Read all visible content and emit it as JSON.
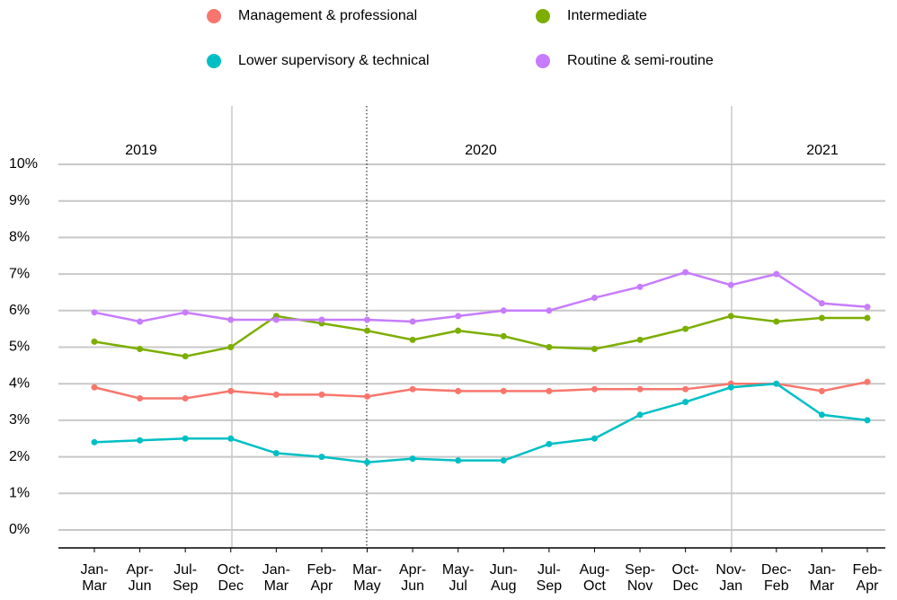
{
  "chart_data": {
    "type": "line",
    "categories": [
      "Jan-Mar",
      "Apr-Jun",
      "Jul-Sep",
      "Oct-Dec",
      "Jan-Mar",
      "Feb-Apr",
      "Mar-May",
      "Apr-Jun",
      "May-Jul",
      "Jun-Aug",
      "Jul-Sep",
      "Aug-Oct",
      "Sep-Nov",
      "Oct-Dec",
      "Nov-Jan",
      "Dec-Feb",
      "Jan-Mar",
      "Feb-Apr"
    ],
    "annotations": [
      "2019",
      "2020",
      "2021"
    ],
    "series": [
      {
        "name": "Management & professional",
        "color": "#f8766d",
        "values": [
          3.9,
          3.6,
          3.6,
          3.8,
          3.7,
          3.7,
          3.65,
          3.85,
          3.8,
          3.8,
          3.8,
          3.85,
          3.85,
          3.85,
          4.0,
          4.0,
          3.8,
          4.05
        ]
      },
      {
        "name": "Intermediate",
        "color": "#7cae00",
        "values": [
          5.15,
          4.95,
          4.75,
          5.0,
          5.85,
          5.65,
          5.45,
          5.2,
          5.45,
          5.3,
          5.0,
          4.95,
          5.2,
          5.5,
          5.85,
          5.7,
          5.8,
          5.8
        ]
      },
      {
        "name": "Lower supervisory & technical",
        "color": "#00bfc4",
        "values": [
          2.4,
          2.45,
          2.5,
          2.5,
          2.1,
          2.0,
          1.85,
          1.95,
          1.9,
          1.9,
          2.35,
          2.5,
          3.15,
          3.5,
          3.9,
          4.0,
          3.15,
          3.0
        ]
      },
      {
        "name": "Routine & semi-routine",
        "color": "#c77cff",
        "values": [
          5.95,
          5.7,
          5.95,
          5.75,
          5.75,
          5.75,
          5.75,
          5.7,
          5.85,
          6.0,
          6.0,
          6.35,
          6.65,
          7.05,
          6.7,
          7.0,
          6.2,
          6.1
        ]
      }
    ],
    "ylim": [
      0,
      10
    ],
    "yticks": [
      {
        "value": 0,
        "label": "0%"
      },
      {
        "value": 1,
        "label": "1%"
      },
      {
        "value": 2,
        "label": "2%"
      },
      {
        "value": 3,
        "label": "3%"
      },
      {
        "value": 4,
        "label": "4%"
      },
      {
        "value": 5,
        "label": "5%"
      },
      {
        "value": 6,
        "label": "6%"
      },
      {
        "value": 7,
        "label": "7%"
      },
      {
        "value": 8,
        "label": "8%"
      },
      {
        "value": 9,
        "label": "9%"
      },
      {
        "value": 10,
        "label": "10%"
      }
    ],
    "grid": true,
    "legend": "top"
  }
}
